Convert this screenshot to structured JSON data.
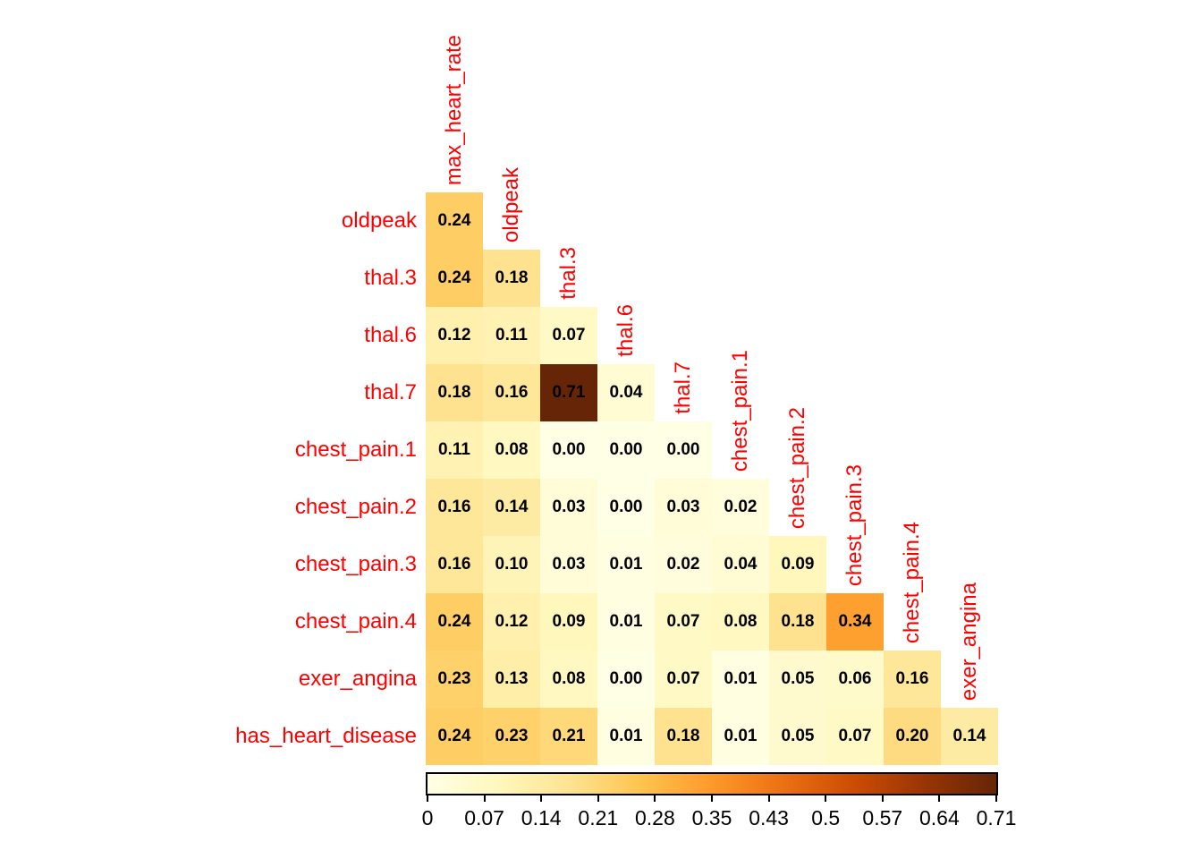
{
  "chart_data": {
    "type": "heatmap",
    "title": "",
    "description": "lower-triangular correlation matrix heatmap with colorbar",
    "row_labels": [
      "oldpeak",
      "thal.3",
      "thal.6",
      "thal.7",
      "chest_pain.1",
      "chest_pain.2",
      "chest_pain.3",
      "chest_pain.4",
      "exer_angina",
      "has_heart_disease"
    ],
    "col_labels": [
      "max_heart_rate",
      "oldpeak",
      "thal.3",
      "thal.6",
      "thal.7",
      "chest_pain.1",
      "chest_pain.2",
      "chest_pain.3",
      "chest_pain.4",
      "exer_angina"
    ],
    "rows": [
      {
        "label": "oldpeak",
        "values": [
          0.24
        ]
      },
      {
        "label": "thal.3",
        "values": [
          0.24,
          0.18
        ]
      },
      {
        "label": "thal.6",
        "values": [
          0.12,
          0.11,
          0.07
        ]
      },
      {
        "label": "thal.7",
        "values": [
          0.18,
          0.16,
          0.71,
          0.04
        ]
      },
      {
        "label": "chest_pain.1",
        "values": [
          0.11,
          0.08,
          0.0,
          0.0,
          0.0
        ]
      },
      {
        "label": "chest_pain.2",
        "values": [
          0.16,
          0.14,
          0.03,
          0.0,
          0.03,
          0.02
        ]
      },
      {
        "label": "chest_pain.3",
        "values": [
          0.16,
          0.1,
          0.03,
          0.01,
          0.02,
          0.04,
          0.09
        ]
      },
      {
        "label": "chest_pain.4",
        "values": [
          0.24,
          0.12,
          0.09,
          0.01,
          0.07,
          0.08,
          0.18,
          0.34
        ]
      },
      {
        "label": "exer_angina",
        "values": [
          0.23,
          0.13,
          0.08,
          0.0,
          0.07,
          0.01,
          0.05,
          0.06,
          0.16
        ]
      },
      {
        "label": "has_heart_disease",
        "values": [
          0.24,
          0.23,
          0.21,
          0.01,
          0.18,
          0.01,
          0.05,
          0.07,
          0.2,
          0.14
        ]
      }
    ],
    "vmin": 0,
    "vmax": 0.71,
    "value_decimals": 2,
    "colorbar_ticks": [
      "0",
      "0.07",
      "0.14",
      "0.21",
      "0.28",
      "0.35",
      "0.43",
      "0.5",
      "0.57",
      "0.64",
      "0.71"
    ],
    "colormap": {
      "name": "YlOrBr",
      "stops": [
        "#FFFFE5",
        "#FFF7BC",
        "#FEE391",
        "#FEC44F",
        "#FE9929",
        "#EC7014",
        "#CC4C02",
        "#993404",
        "#662506"
      ]
    },
    "label_color": "#FF0000",
    "value_color": "#000000",
    "legend_position": "bottom",
    "grid": false
  }
}
